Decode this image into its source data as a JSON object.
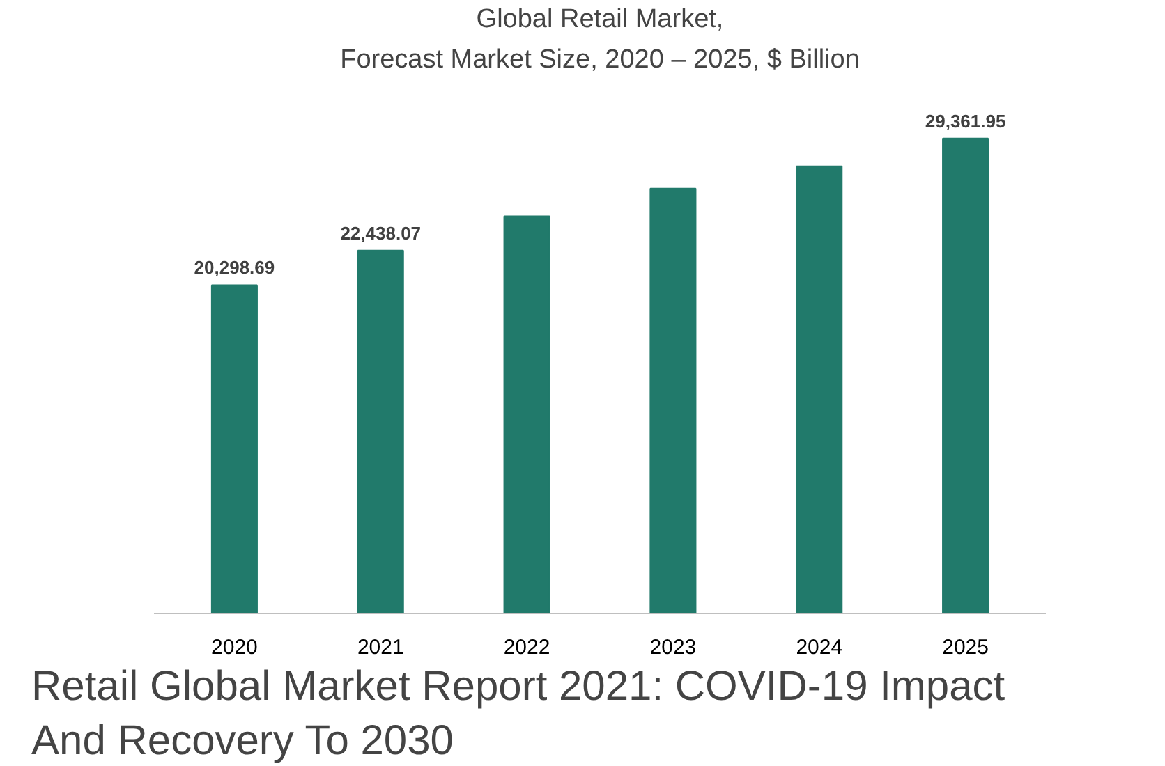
{
  "chart_data": {
    "type": "bar",
    "title": "Global Retail Market,",
    "subtitle": "Forecast Market Size, 2020 – 2025, $ Billion",
    "categories": [
      "2020",
      "2021",
      "2022",
      "2023",
      "2024",
      "2025"
    ],
    "values": [
      20298.69,
      22438.07,
      24560,
      26270,
      27640,
      29361.95
    ],
    "value_labels": [
      "20,298.69",
      "22,438.07",
      null,
      null,
      null,
      "29,361.95"
    ],
    "color": "#217a6b",
    "grid": false,
    "annotations": [
      "Retail Global Market Report 2021: COVID-19 Impact And Recovery To 2030"
    ]
  }
}
